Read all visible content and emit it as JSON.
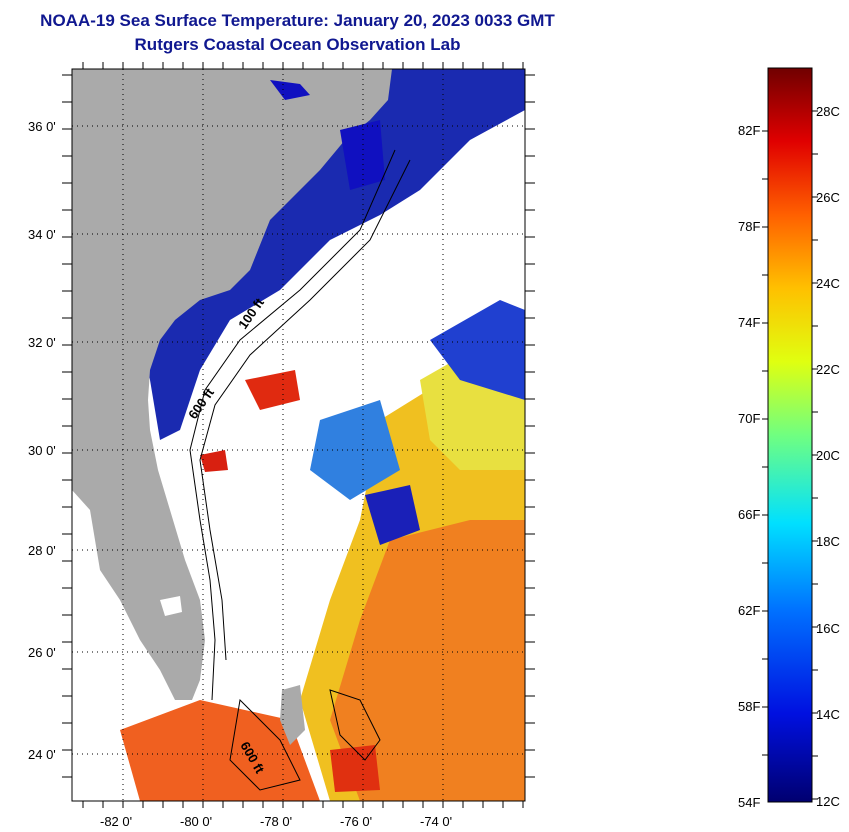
{
  "title": {
    "line1": "NOAA-19 Sea Surface Temperature:  January 20, 2023 0033 GMT",
    "line2": "Rutgers Coastal Ocean Observation Lab"
  },
  "map": {
    "lat_ticks": [
      "36 0'",
      "34 0'",
      "32 0'",
      "30 0'",
      "28 0'",
      "26 0'",
      "24 0'"
    ],
    "lon_ticks": [
      "-82 0'",
      "-80 0'",
      "-78 0'",
      "-76 0'",
      "-74 0'"
    ],
    "isobath_labels": [
      "100 ft",
      "600 ft",
      "600 ft"
    ],
    "colors": {
      "land": "#aaaaaa",
      "cloud": "#ffffff",
      "cold": "#0a1fa8",
      "cool": "#2a6fe0",
      "mid": "#1ed0a0",
      "warm": "#e6e628",
      "hot": "#f07818",
      "veryhot": "#e02a10",
      "water_blue": "#1010c8"
    }
  },
  "colorbar": {
    "fahrenheit_labels": [
      "82F",
      "78F",
      "74F",
      "70F",
      "66F",
      "62F",
      "58F",
      "54F"
    ],
    "celsius_labels": [
      "28C",
      "26C",
      "24C",
      "22C",
      "20C",
      "18C",
      "16C",
      "14C",
      "12C"
    ],
    "range_c": [
      12,
      29
    ]
  }
}
